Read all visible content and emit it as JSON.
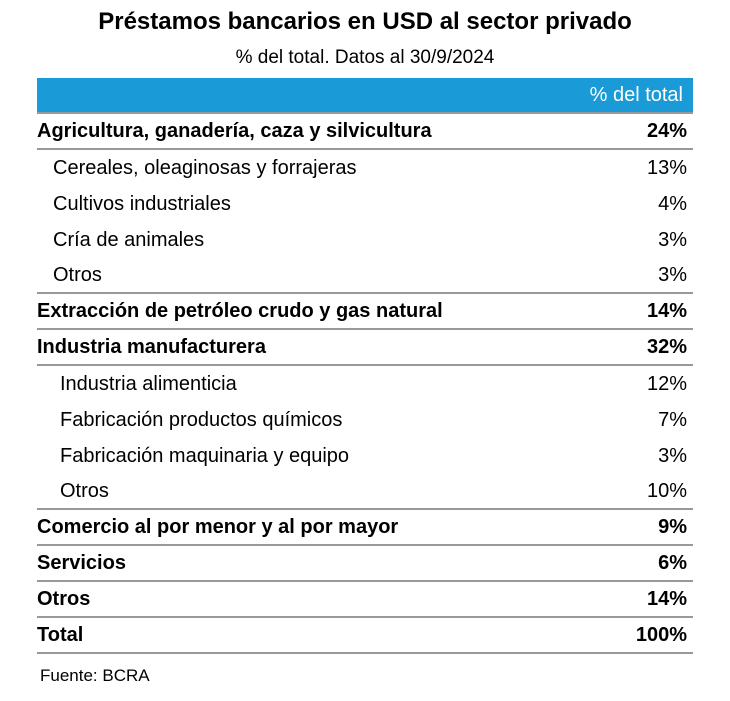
{
  "title": "Préstamos bancarios en USD al sector privado",
  "subtitle": "% del total. Datos al 30/9/2024",
  "colors": {
    "header_bg": "#1a9bd7",
    "rule": "#999999"
  },
  "chart_data": {
    "type": "table",
    "title": "Préstamos bancarios en USD al sector privado",
    "subtitle": "% del total. Datos al 30/9/2024",
    "column_header": "% del total",
    "rows": [
      {
        "label": "Agricultura, ganadería, caza y silvicultura",
        "value": "24%",
        "level": 0
      },
      {
        "label": "Cereales, oleaginosas y forrajeras",
        "value": "13%",
        "level": 1
      },
      {
        "label": "Cultivos industriales",
        "value": "4%",
        "level": 1
      },
      {
        "label": "Cría de animales",
        "value": "3%",
        "level": 1
      },
      {
        "label": "Otros",
        "value": "3%",
        "level": 1
      },
      {
        "label": "Extracción de petróleo crudo y gas natural",
        "value": "14%",
        "level": 0
      },
      {
        "label": "Industria manufacturera",
        "value": "32%",
        "level": 0
      },
      {
        "label": "Industria alimenticia",
        "value": "12%",
        "level": 2
      },
      {
        "label": "Fabricación productos químicos",
        "value": "7%",
        "level": 2
      },
      {
        "label": "Fabricación maquinaria y equipo",
        "value": "3%",
        "level": 2
      },
      {
        "label": "Otros",
        "value": "10%",
        "level": 2
      },
      {
        "label": "Comercio al por menor y al por mayor",
        "value": "9%",
        "level": 0
      },
      {
        "label": "Servicios",
        "value": "6%",
        "level": 0
      },
      {
        "label": "Otros",
        "value": "14%",
        "level": 0
      },
      {
        "label": "Total",
        "value": "100%",
        "level": 0
      }
    ],
    "source": "Fuente: BCRA"
  }
}
